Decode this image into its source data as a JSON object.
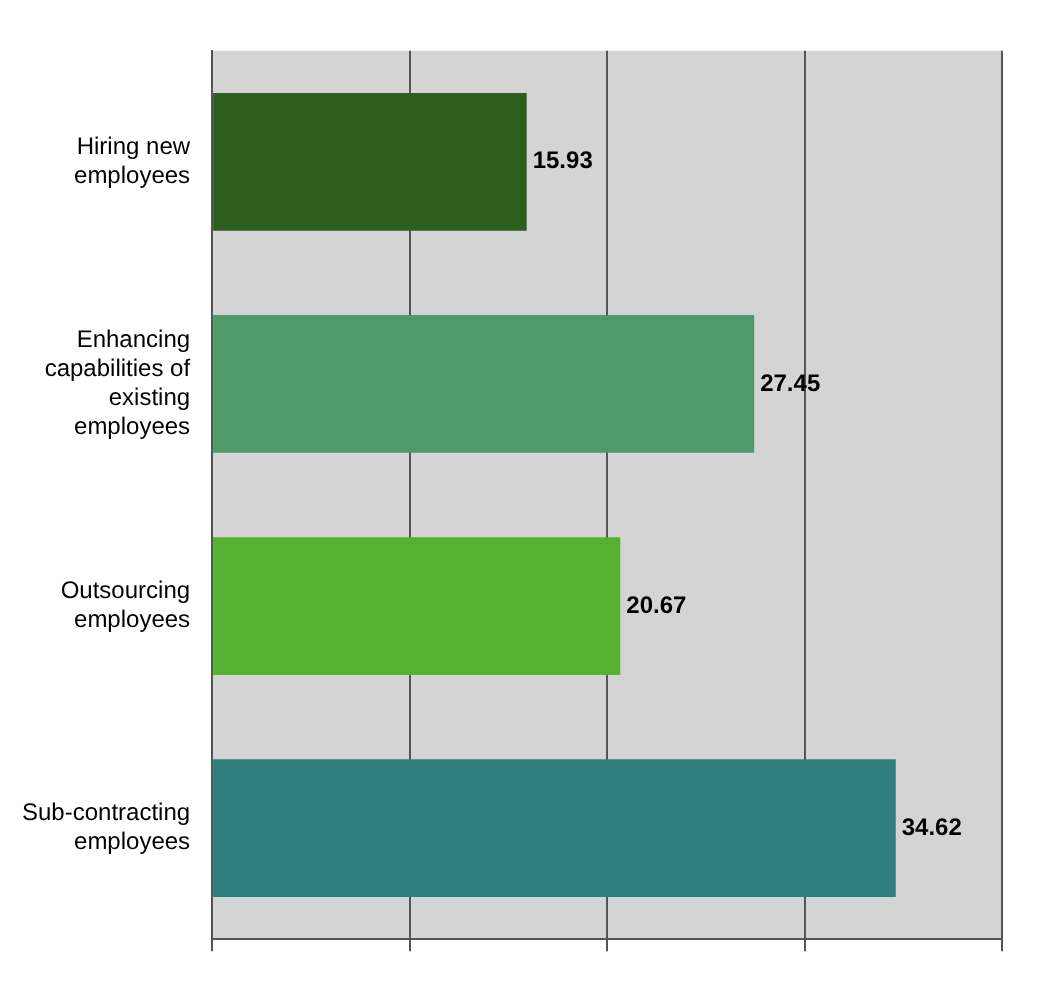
{
  "chart_data": {
    "type": "bar",
    "orientation": "horizontal",
    "categories": [
      "Hiring new employees",
      "Enhancing capabilities of existing employees",
      "Outsourcing employees",
      "Sub-contracting employees"
    ],
    "values": [
      15.93,
      27.45,
      20.67,
      34.62
    ],
    "colors": [
      "#2d5e1e",
      "#4f9a6a",
      "#56b032",
      "#2e7f7d"
    ],
    "xlim": [
      0,
      40
    ],
    "xticks": [
      {
        "value": 0,
        "label": null
      },
      {
        "value": 10,
        "label": null
      },
      {
        "value": 20,
        "label": null
      },
      {
        "value": 30,
        "label": null
      },
      {
        "value": 40,
        "label": null
      }
    ],
    "grid": "x",
    "tick_labels": "y",
    "data_labels": true,
    "legend": false
  }
}
